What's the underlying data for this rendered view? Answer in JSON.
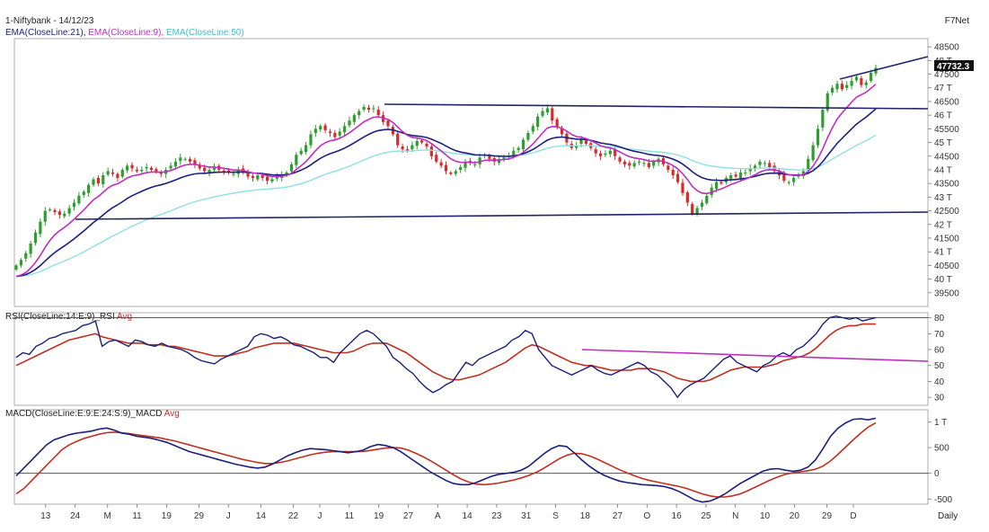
{
  "header": {
    "title": "1-Niftybank - 14/12/23",
    "brand": "F7Net",
    "ema21_label": "EMA(CloseLine:21),",
    "ema9_label": "EMA(CloseLine:9),",
    "ema50_label": "EMA(CloseLine:50)",
    "rsi_label": "RSI(CloseLine:14:E:9)_RSI",
    "rsi_avg_label": "Avg",
    "macd_label": "MACD(CloseLine:E:9:E:24:S:9)_MACD",
    "macd_avg_label": "Avg",
    "period_label": "Daily",
    "last_price": "47732.3"
  },
  "colors": {
    "candle_up": "#2e9e2e",
    "candle_down": "#d62b2b",
    "ema21": "#1c1f7a",
    "ema9": "#c02ec0",
    "ema50": "#8fdfe6",
    "trendline": "#22226b",
    "rsi": "#1c1f7a",
    "rsi_avg": "#c03020",
    "rsi_trend": "#c02ec0",
    "macd": "#1c1f7a",
    "macd_avg": "#c03020"
  },
  "chart_data": [
    {
      "type": "candlestick",
      "panel": "price",
      "ylim": [
        39000,
        48800
      ],
      "y_ticks": [
        "48500",
        "48 T",
        "47500",
        "47 T",
        "46500",
        "46 T",
        "45500",
        "45 T",
        "44500",
        "44 T",
        "43500",
        "43 T",
        "42500",
        "42 T",
        "41500",
        "41 T",
        "40500",
        "40 T",
        "39500"
      ],
      "y_tick_values": [
        48500,
        48000,
        47500,
        47000,
        46500,
        46000,
        45500,
        45000,
        44500,
        44000,
        43500,
        43000,
        42500,
        42000,
        41500,
        41000,
        40500,
        40000,
        39500
      ],
      "x_labels": [
        "13",
        "24",
        "M",
        "11",
        "19",
        "29",
        "J",
        "14",
        "22",
        "J",
        "11",
        "19",
        "27",
        "A",
        "14",
        "23",
        "31",
        "S",
        "18",
        "27",
        "O",
        "16",
        "25",
        "N",
        "10",
        "20",
        "29",
        "D"
      ],
      "x_label_positions": [
        0.05,
        0.1,
        0.155,
        0.205,
        0.255,
        0.31,
        0.36,
        0.415,
        0.47,
        0.515,
        0.565,
        0.615,
        0.665,
        0.715,
        0.765,
        0.815,
        0.865,
        0.915,
        0.965,
        1.02,
        1.07,
        1.12,
        1.17,
        1.22,
        1.27,
        1.32,
        1.375,
        1.42
      ],
      "closes": [
        40500,
        40700,
        40950,
        41300,
        41700,
        42100,
        42500,
        42550,
        42450,
        42350,
        42400,
        42600,
        42800,
        43050,
        43200,
        43450,
        43650,
        43500,
        43800,
        43950,
        43850,
        43700,
        44000,
        44150,
        44050,
        43950,
        44000,
        44100,
        44000,
        43950,
        43850,
        44000,
        44150,
        44300,
        44450,
        44400,
        44300,
        44200,
        44050,
        43950,
        44000,
        44100,
        44000,
        43950,
        43900,
        43850,
        44000,
        43900,
        43750,
        43700,
        43800,
        43700,
        43600,
        43650,
        43750,
        43800,
        43900,
        44200,
        44550,
        44700,
        44900,
        45300,
        45500,
        45600,
        45450,
        45350,
        45200,
        45400,
        45600,
        45800,
        46000,
        46150,
        46300,
        46200,
        46250,
        46000,
        45750,
        45600,
        45300,
        44900,
        44750,
        44700,
        44900,
        45050,
        45000,
        44850,
        44500,
        44300,
        44150,
        43950,
        43850,
        43950,
        44100,
        44300,
        44250,
        44200,
        44450,
        44550,
        44400,
        44300,
        44400,
        44450,
        44500,
        44700,
        44800,
        45100,
        45350,
        45600,
        45950,
        46150,
        46250,
        45800,
        45550,
        45300,
        45000,
        44800,
        44900,
        45100,
        44950,
        44800,
        44600,
        44500,
        44600,
        44700,
        44500,
        44300,
        44200,
        44150,
        44250,
        44300,
        44250,
        44100,
        44300,
        44400,
        44200,
        44000,
        43800,
        43550,
        43150,
        42800,
        42400,
        42600,
        42800,
        43050,
        43350,
        43550,
        43500,
        43700,
        43800,
        43750,
        43900,
        43900,
        44050,
        44150,
        44300,
        44250,
        44100,
        43950,
        43800,
        43600,
        43550,
        43700,
        43800,
        43950,
        44400,
        44900,
        45500,
        46200,
        46800,
        47000,
        47150,
        46950,
        47100,
        47250,
        47400,
        47100,
        47200,
        47550,
        47732.3
      ]
    },
    {
      "type": "line",
      "panel": "rsi",
      "ylim": [
        25,
        82
      ],
      "y_ticks": [
        "80",
        "70",
        "60",
        "50",
        "40",
        "30"
      ],
      "y_tick_values": [
        80,
        70,
        60,
        50,
        40,
        30
      ],
      "rsi": [
        55,
        58,
        57,
        62,
        64,
        67,
        68,
        70,
        71,
        72,
        75,
        76,
        78,
        62,
        65,
        66,
        64,
        62,
        66,
        65,
        63,
        62,
        64,
        62,
        61,
        60,
        58,
        55,
        53,
        52,
        51,
        54,
        56,
        58,
        60,
        62,
        68,
        70,
        69,
        67,
        68,
        66,
        63,
        62,
        60,
        58,
        55,
        55,
        52,
        58,
        62,
        66,
        70,
        72,
        70,
        66,
        62,
        55,
        52,
        48,
        45,
        40,
        36,
        33,
        35,
        38,
        40,
        46,
        52,
        50,
        54,
        56,
        58,
        60,
        62,
        66,
        68,
        72,
        70,
        60,
        55,
        50,
        48,
        46,
        44,
        46,
        48,
        50,
        47,
        45,
        44,
        46,
        48,
        50,
        52,
        50,
        46,
        44,
        40,
        36,
        30,
        35,
        38,
        40,
        42,
        46,
        50,
        54,
        56,
        52,
        50,
        48,
        46,
        50,
        52,
        56,
        58,
        56,
        60,
        62,
        66,
        70,
        76,
        80,
        81,
        80,
        79,
        80,
        78,
        79,
        80
      ],
      "rsi_avg": [
        50,
        52,
        54,
        56,
        58,
        60,
        62,
        64,
        66,
        67,
        68,
        69,
        70,
        68,
        67,
        66,
        65,
        64,
        64,
        64,
        63,
        63,
        63,
        62,
        62,
        61,
        60,
        59,
        58,
        57,
        56,
        56,
        56,
        57,
        58,
        59,
        61,
        62,
        63,
        64,
        64,
        64,
        64,
        63,
        62,
        61,
        60,
        59,
        58,
        58,
        58,
        59,
        61,
        63,
        64,
        64,
        64,
        62,
        60,
        58,
        55,
        52,
        49,
        46,
        44,
        42,
        41,
        41,
        42,
        43,
        44,
        46,
        48,
        50,
        52,
        55,
        58,
        61,
        63,
        62,
        60,
        58,
        56,
        54,
        52,
        51,
        50,
        50,
        49,
        48,
        47,
        47,
        47,
        47,
        48,
        48,
        48,
        47,
        46,
        44,
        42,
        41,
        40,
        40,
        40,
        41,
        43,
        45,
        47,
        48,
        49,
        49,
        49,
        49,
        50,
        51,
        53,
        54,
        55,
        56,
        58,
        61,
        65,
        69,
        72,
        74,
        75,
        75,
        76,
        76,
        76
      ]
    },
    {
      "type": "line",
      "panel": "macd",
      "ylim": [
        -600,
        1200
      ],
      "y_ticks": [
        "1 T",
        "500",
        "0",
        "-500"
      ],
      "y_tick_values": [
        1000,
        500,
        0,
        -500
      ],
      "macd": [
        -50,
        100,
        250,
        400,
        550,
        650,
        700,
        750,
        780,
        800,
        820,
        860,
        880,
        840,
        780,
        760,
        720,
        700,
        680,
        640,
        600,
        540,
        480,
        420,
        380,
        340,
        300,
        260,
        220,
        180,
        150,
        120,
        100,
        120,
        180,
        260,
        340,
        400,
        450,
        480,
        470,
        460,
        440,
        420,
        400,
        420,
        450,
        520,
        560,
        540,
        500,
        420,
        320,
        220,
        120,
        20,
        -60,
        -140,
        -200,
        -220,
        -220,
        -180,
        -120,
        -60,
        -20,
        0,
        20,
        60,
        140,
        260,
        380,
        480,
        540,
        520,
        400,
        260,
        140,
        40,
        -40,
        -100,
        -150,
        -180,
        -200,
        -220,
        -230,
        -240,
        -260,
        -300,
        -360,
        -440,
        -520,
        -560,
        -540,
        -480,
        -400,
        -300,
        -200,
        -120,
        -40,
        40,
        80,
        90,
        60,
        40,
        60,
        120,
        260,
        480,
        720,
        880,
        980,
        1050,
        1060,
        1040,
        1070
      ],
      "macd_avg": [
        -400,
        -300,
        -150,
        0,
        150,
        300,
        450,
        550,
        620,
        680,
        720,
        760,
        790,
        800,
        790,
        770,
        750,
        730,
        710,
        690,
        660,
        630,
        590,
        550,
        510,
        470,
        430,
        390,
        350,
        310,
        270,
        240,
        210,
        190,
        190,
        210,
        240,
        280,
        320,
        360,
        390,
        410,
        420,
        420,
        420,
        420,
        425,
        445,
        470,
        490,
        500,
        490,
        450,
        390,
        320,
        240,
        150,
        60,
        -30,
        -110,
        -170,
        -210,
        -220,
        -210,
        -190,
        -160,
        -130,
        -90,
        -40,
        20,
        100,
        190,
        280,
        350,
        390,
        380,
        340,
        280,
        210,
        140,
        70,
        10,
        -50,
        -100,
        -140,
        -170,
        -200,
        -230,
        -260,
        -300,
        -350,
        -400,
        -440,
        -460,
        -460,
        -440,
        -400,
        -340,
        -270,
        -200,
        -130,
        -70,
        -20,
        10,
        30,
        50,
        80,
        140,
        240,
        370,
        510,
        650,
        780,
        900,
        980
      ]
    }
  ]
}
